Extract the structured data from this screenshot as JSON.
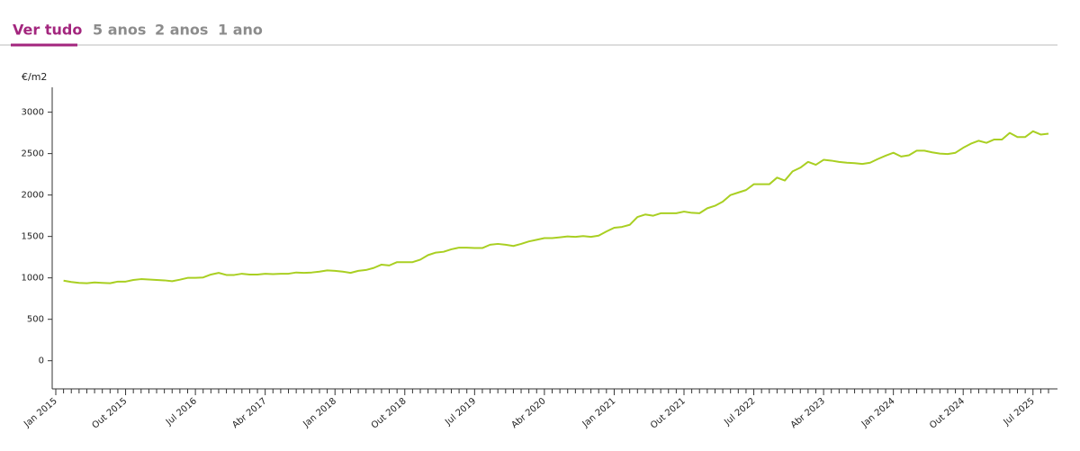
{
  "tabs": [
    "Ver tudo",
    "5 anos",
    "2 anos",
    "1 ano"
  ],
  "chart_data": {
    "type": "line",
    "y_label": "€/m2",
    "categories": [
      "Jan 2015",
      null,
      null,
      null,
      null,
      null,
      null,
      null,
      null,
      "Out 2015",
      null,
      null,
      null,
      null,
      null,
      null,
      null,
      null,
      "Jul 2016",
      null,
      null,
      null,
      null,
      null,
      null,
      null,
      null,
      "Abr 2017",
      null,
      null,
      null,
      null,
      null,
      null,
      null,
      null,
      "Jan 2018",
      null,
      null,
      null,
      null,
      null,
      null,
      null,
      null,
      "Out 2018",
      null,
      null,
      null,
      null,
      null,
      null,
      null,
      null,
      "Jul 2019",
      null,
      null,
      null,
      null,
      null,
      null,
      null,
      null,
      "Abr 2020",
      null,
      null,
      null,
      null,
      null,
      null,
      null,
      null,
      "Jan 2021",
      null,
      null,
      null,
      null,
      null,
      null,
      null,
      null,
      "Out 2021",
      null,
      null,
      null,
      null,
      null,
      null,
      null,
      null,
      "Jul 2022",
      null,
      null,
      null,
      null,
      null,
      null,
      null,
      null,
      "Abr 2023",
      null,
      null,
      null,
      null,
      null,
      null,
      null,
      null,
      "Jan 2024",
      null,
      null,
      null,
      null,
      null,
      null,
      null,
      null,
      "Out 2024",
      null,
      null,
      null,
      null,
      null,
      null,
      null,
      null,
      "Jul 2025",
      null,
      null
    ],
    "values": [
      null,
      967,
      950,
      940,
      935,
      945,
      940,
      935,
      955,
      955,
      975,
      985,
      980,
      975,
      970,
      960,
      978,
      1000,
      1000,
      1005,
      1040,
      1060,
      1035,
      1035,
      1050,
      1040,
      1040,
      1050,
      1045,
      1050,
      1050,
      1065,
      1060,
      1065,
      1075,
      1090,
      1085,
      1075,
      1060,
      1085,
      1095,
      1120,
      1160,
      1150,
      1190,
      1190,
      1190,
      1220,
      1275,
      1305,
      1315,
      1345,
      1365,
      1365,
      1360,
      1360,
      1400,
      1410,
      1400,
      1385,
      1410,
      1440,
      1460,
      1480,
      1480,
      1490,
      1500,
      1495,
      1505,
      1495,
      1510,
      1560,
      1605,
      1615,
      1640,
      1735,
      1765,
      1750,
      1780,
      1780,
      1780,
      1800,
      1785,
      1780,
      1840,
      1870,
      1920,
      2000,
      2030,
      2060,
      2130,
      2130,
      2130,
      2210,
      2175,
      2285,
      2330,
      2400,
      2365,
      2425,
      2415,
      2400,
      2390,
      2385,
      2375,
      2390,
      2435,
      2475,
      2510,
      2465,
      2480,
      2535,
      2535,
      2515,
      2500,
      2495,
      2510,
      2570,
      2620,
      2655,
      2630,
      2670,
      2670,
      2750,
      2700,
      2700,
      2770,
      2730,
      2740
    ],
    "color": "#a9cf22",
    "ylim": [
      -340,
      3300
    ],
    "yticks": [
      0,
      500,
      1000,
      1500,
      2000,
      2500,
      3000
    ]
  }
}
